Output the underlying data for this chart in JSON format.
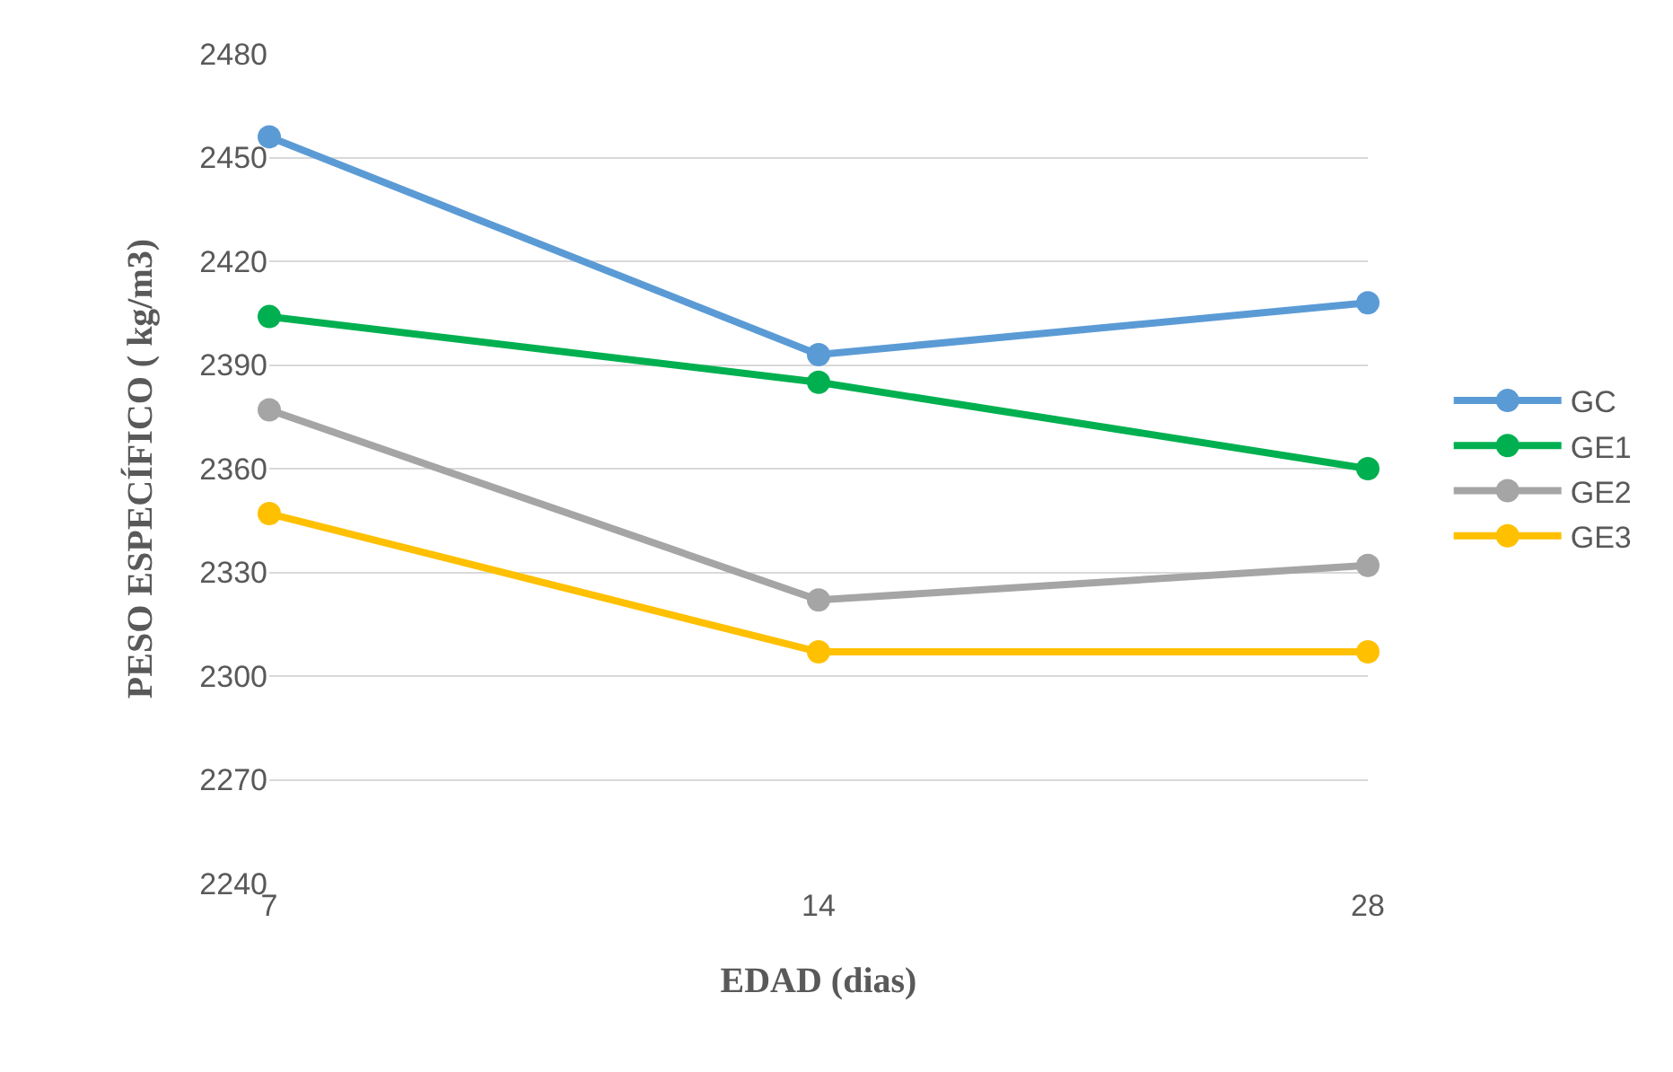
{
  "chart_data": {
    "type": "line",
    "xlabel": "EDAD (dias)",
    "ylabel": "PESO ESPECÍFICO ( kg/m3)",
    "categories": [
      "7",
      "14",
      "28"
    ],
    "series": [
      {
        "name": "GC",
        "color": "#5b9bd5",
        "values": [
          2456,
          2393,
          2408
        ]
      },
      {
        "name": "GE1",
        "color": "#00b050",
        "values": [
          2404,
          2385,
          2360
        ]
      },
      {
        "name": "GE2",
        "color": "#a5a5a5",
        "values": [
          2377,
          2322,
          2332
        ]
      },
      {
        "name": "GE3",
        "color": "#ffc000",
        "values": [
          2347,
          2307,
          2307
        ]
      }
    ],
    "ylim": [
      2240,
      2480
    ],
    "yticks": [
      2240,
      2270,
      2300,
      2330,
      2360,
      2390,
      2420,
      2450,
      2480
    ],
    "grid": "y",
    "legend": "right",
    "marker": "circle",
    "line_style": "solid"
  }
}
